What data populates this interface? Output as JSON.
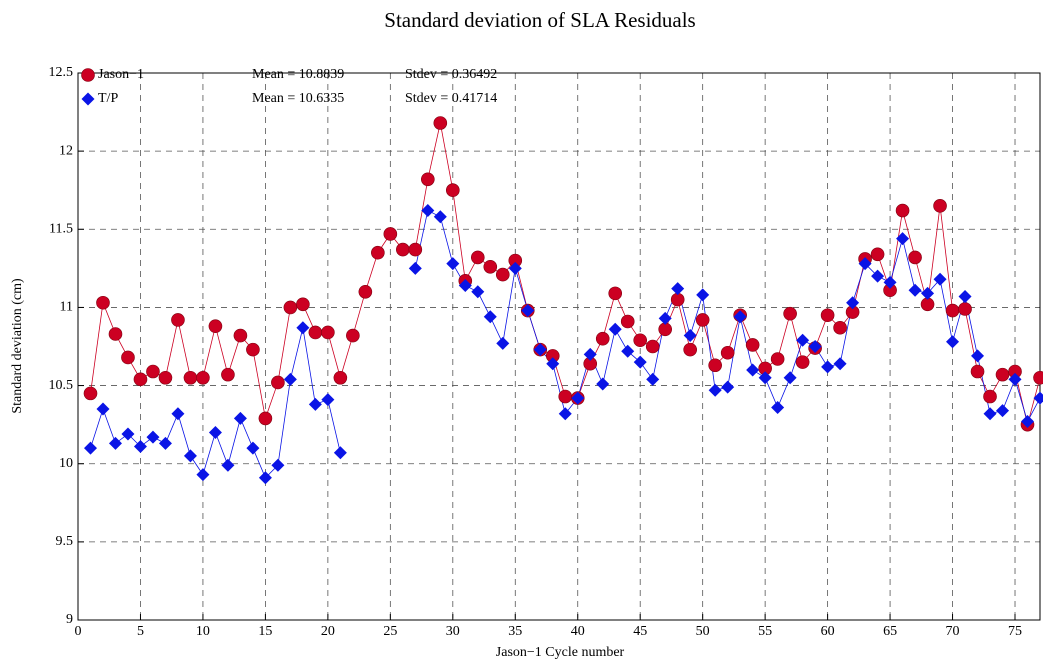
{
  "chart_data": {
    "type": "line",
    "title": "Standard deviation of SLA Residuals",
    "x_label": "Jason−1 Cycle number",
    "y_label": "Standard deviation (cm)",
    "annotations": [
      "Mean = 10.8839",
      "Stdev = 0.36492",
      "Mean = 10.6335",
      "Stdev = 0.41714"
    ],
    "x": [
      1,
      2,
      3,
      4,
      5,
      6,
      7,
      8,
      9,
      10,
      11,
      12,
      13,
      14,
      15,
      16,
      17,
      18,
      19,
      20,
      21,
      22,
      23,
      24,
      25,
      26,
      27,
      28,
      29,
      30,
      31,
      32,
      33,
      34,
      35,
      36,
      37,
      38,
      39,
      40,
      41,
      42,
      43,
      44,
      45,
      46,
      47,
      48,
      49,
      50,
      51,
      52,
      53,
      54,
      55,
      56,
      57,
      58,
      59,
      60,
      61,
      62,
      63,
      64,
      65,
      66,
      67,
      68,
      69,
      70,
      71,
      72,
      73,
      74,
      75,
      76,
      77
    ],
    "series": [
      {
        "name": "Jason−1",
        "color": "#cc0022",
        "marker": "circle",
        "values": [
          10.45,
          11.03,
          10.83,
          10.68,
          10.54,
          10.59,
          10.55,
          10.92,
          10.55,
          10.55,
          10.88,
          10.57,
          10.82,
          10.73,
          10.29,
          10.52,
          11.0,
          11.02,
          10.84,
          10.84,
          10.55,
          10.82,
          11.1,
          11.35,
          11.47,
          11.37,
          11.37,
          11.82,
          12.18,
          11.75,
          11.17,
          11.32,
          11.26,
          11.21,
          11.3,
          10.98,
          10.73,
          10.69,
          10.43,
          10.42,
          10.64,
          10.8,
          11.09,
          10.91,
          10.79,
          10.75,
          10.86,
          11.05,
          10.73,
          10.92,
          10.63,
          10.71,
          10.95,
          10.76,
          10.61,
          10.67,
          10.96,
          10.65,
          10.74,
          10.95,
          10.87,
          10.97,
          11.31,
          11.34,
          11.11,
          11.62,
          11.32,
          11.02,
          11.65,
          10.98,
          10.99,
          10.59,
          10.43,
          10.57,
          10.59,
          10.25,
          10.55
        ]
      },
      {
        "name": "T/P",
        "color": "#0a14e6",
        "marker": "diamond",
        "values": [
          10.1,
          10.35,
          10.13,
          10.19,
          10.11,
          10.17,
          10.13,
          10.32,
          10.05,
          9.93,
          10.2,
          9.99,
          10.29,
          10.1,
          9.91,
          9.99,
          10.54,
          10.87,
          10.38,
          10.41,
          10.07,
          null,
          null,
          null,
          null,
          null,
          11.25,
          11.62,
          11.58,
          11.28,
          11.14,
          11.1,
          10.94,
          10.77,
          11.25,
          10.98,
          10.73,
          10.64,
          10.32,
          10.42,
          10.7,
          10.51,
          10.86,
          10.72,
          10.65,
          10.54,
          10.93,
          11.12,
          10.82,
          11.08,
          10.47,
          10.49,
          10.94,
          10.6,
          10.55,
          10.36,
          10.55,
          10.79,
          10.75,
          10.62,
          10.64,
          11.03,
          11.28,
          11.2,
          11.16,
          11.44,
          11.11,
          11.09,
          11.18,
          10.78,
          11.07,
          10.69,
          10.32,
          10.34,
          10.54,
          10.27,
          10.42
        ]
      }
    ],
    "xlim": [
      0,
      77
    ],
    "xticks": [
      0,
      5,
      10,
      15,
      20,
      25,
      30,
      35,
      40,
      45,
      50,
      55,
      60,
      65,
      70,
      75
    ],
    "ylim": [
      9,
      12.5
    ],
    "yticks": [
      9,
      9.5,
      10,
      10.5,
      11,
      11.5,
      12,
      12.5
    ],
    "grid": true,
    "legend": "upper left"
  }
}
